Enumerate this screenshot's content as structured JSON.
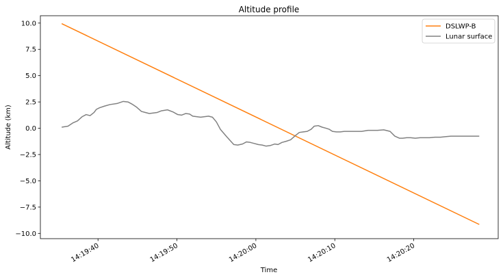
{
  "chart_data": {
    "type": "line",
    "title": "Altitude profile",
    "xlabel": "Time",
    "ylabel": "Altitude (km)",
    "x_ticks": [
      "14:19:40",
      "14:19:50",
      "14:20:00",
      "14:20:10",
      "14:20:20"
    ],
    "x_tick_seconds": [
      40,
      50,
      60,
      70,
      80
    ],
    "y_ticks": [
      "10.0",
      "7.5",
      "5.0",
      "2.5",
      "0.0",
      "−2.5",
      "−5.0",
      "−7.5",
      "−10.0"
    ],
    "y_tick_values": [
      10.0,
      7.5,
      5.0,
      2.5,
      0.0,
      -2.5,
      -5.0,
      -7.5,
      -10.0
    ],
    "xlim_seconds": [
      32.7,
      90.7
    ],
    "ylim": [
      -10.5,
      10.7
    ],
    "legend_position": "top-right",
    "grid": false,
    "series": [
      {
        "name": "DSLWP-B",
        "color": "#ff7f0e",
        "x": [
          35.4,
          88.3
        ],
        "y": [
          9.95,
          -9.15
        ]
      },
      {
        "name": "Lunar surface",
        "color": "#808080",
        "x": [
          35.4,
          36.2,
          36.8,
          37.4,
          38.0,
          38.5,
          39.0,
          39.5,
          39.8,
          40.2,
          40.8,
          41.5,
          42.4,
          43.2,
          43.8,
          44.3,
          44.9,
          45.5,
          46.0,
          46.5,
          47.0,
          47.5,
          48.0,
          48.8,
          49.5,
          50.1,
          50.6,
          51.1,
          51.6,
          52.0,
          52.5,
          53.0,
          53.5,
          54.0,
          54.5,
          55.0,
          55.5,
          56.3,
          57.2,
          57.7,
          58.3,
          58.8,
          59.3,
          59.8,
          60.3,
          60.8,
          61.3,
          61.8,
          62.4,
          62.8,
          63.3,
          63.8,
          64.4,
          65.0,
          65.5,
          66.0,
          66.5,
          67.0,
          67.4,
          67.9,
          68.4,
          68.9,
          69.3,
          69.7,
          70.2,
          70.7,
          71.2,
          71.8,
          72.6,
          73.4,
          74.2,
          74.8,
          75.4,
          76.2,
          77.0,
          77.6,
          78.2,
          78.6,
          79.1,
          79.6,
          80.2,
          80.8,
          81.3,
          82.0,
          82.7,
          83.4,
          84.0,
          84.7,
          85.4,
          86.0,
          86.6,
          87.2,
          87.8,
          88.3
        ],
        "y": [
          0.1,
          0.2,
          0.5,
          0.7,
          1.1,
          1.3,
          1.2,
          1.5,
          1.8,
          1.95,
          2.1,
          2.25,
          2.35,
          2.55,
          2.5,
          2.3,
          2.0,
          1.6,
          1.5,
          1.4,
          1.45,
          1.5,
          1.65,
          1.75,
          1.55,
          1.3,
          1.25,
          1.4,
          1.35,
          1.15,
          1.1,
          1.05,
          1.1,
          1.15,
          1.05,
          0.6,
          -0.1,
          -0.8,
          -1.55,
          -1.6,
          -1.5,
          -1.3,
          -1.35,
          -1.45,
          -1.55,
          -1.6,
          -1.7,
          -1.65,
          -1.5,
          -1.55,
          -1.35,
          -1.25,
          -1.1,
          -0.7,
          -0.4,
          -0.35,
          -0.3,
          -0.1,
          0.2,
          0.25,
          0.1,
          0.0,
          -0.1,
          -0.3,
          -0.35,
          -0.35,
          -0.3,
          -0.3,
          -0.3,
          -0.3,
          -0.2,
          -0.2,
          -0.2,
          -0.15,
          -0.3,
          -0.75,
          -0.95,
          -0.95,
          -0.9,
          -0.9,
          -0.95,
          -0.9,
          -0.9,
          -0.9,
          -0.85,
          -0.85,
          -0.8,
          -0.75,
          -0.75,
          -0.75,
          -0.75,
          -0.75,
          -0.75,
          -0.75
        ]
      }
    ]
  }
}
